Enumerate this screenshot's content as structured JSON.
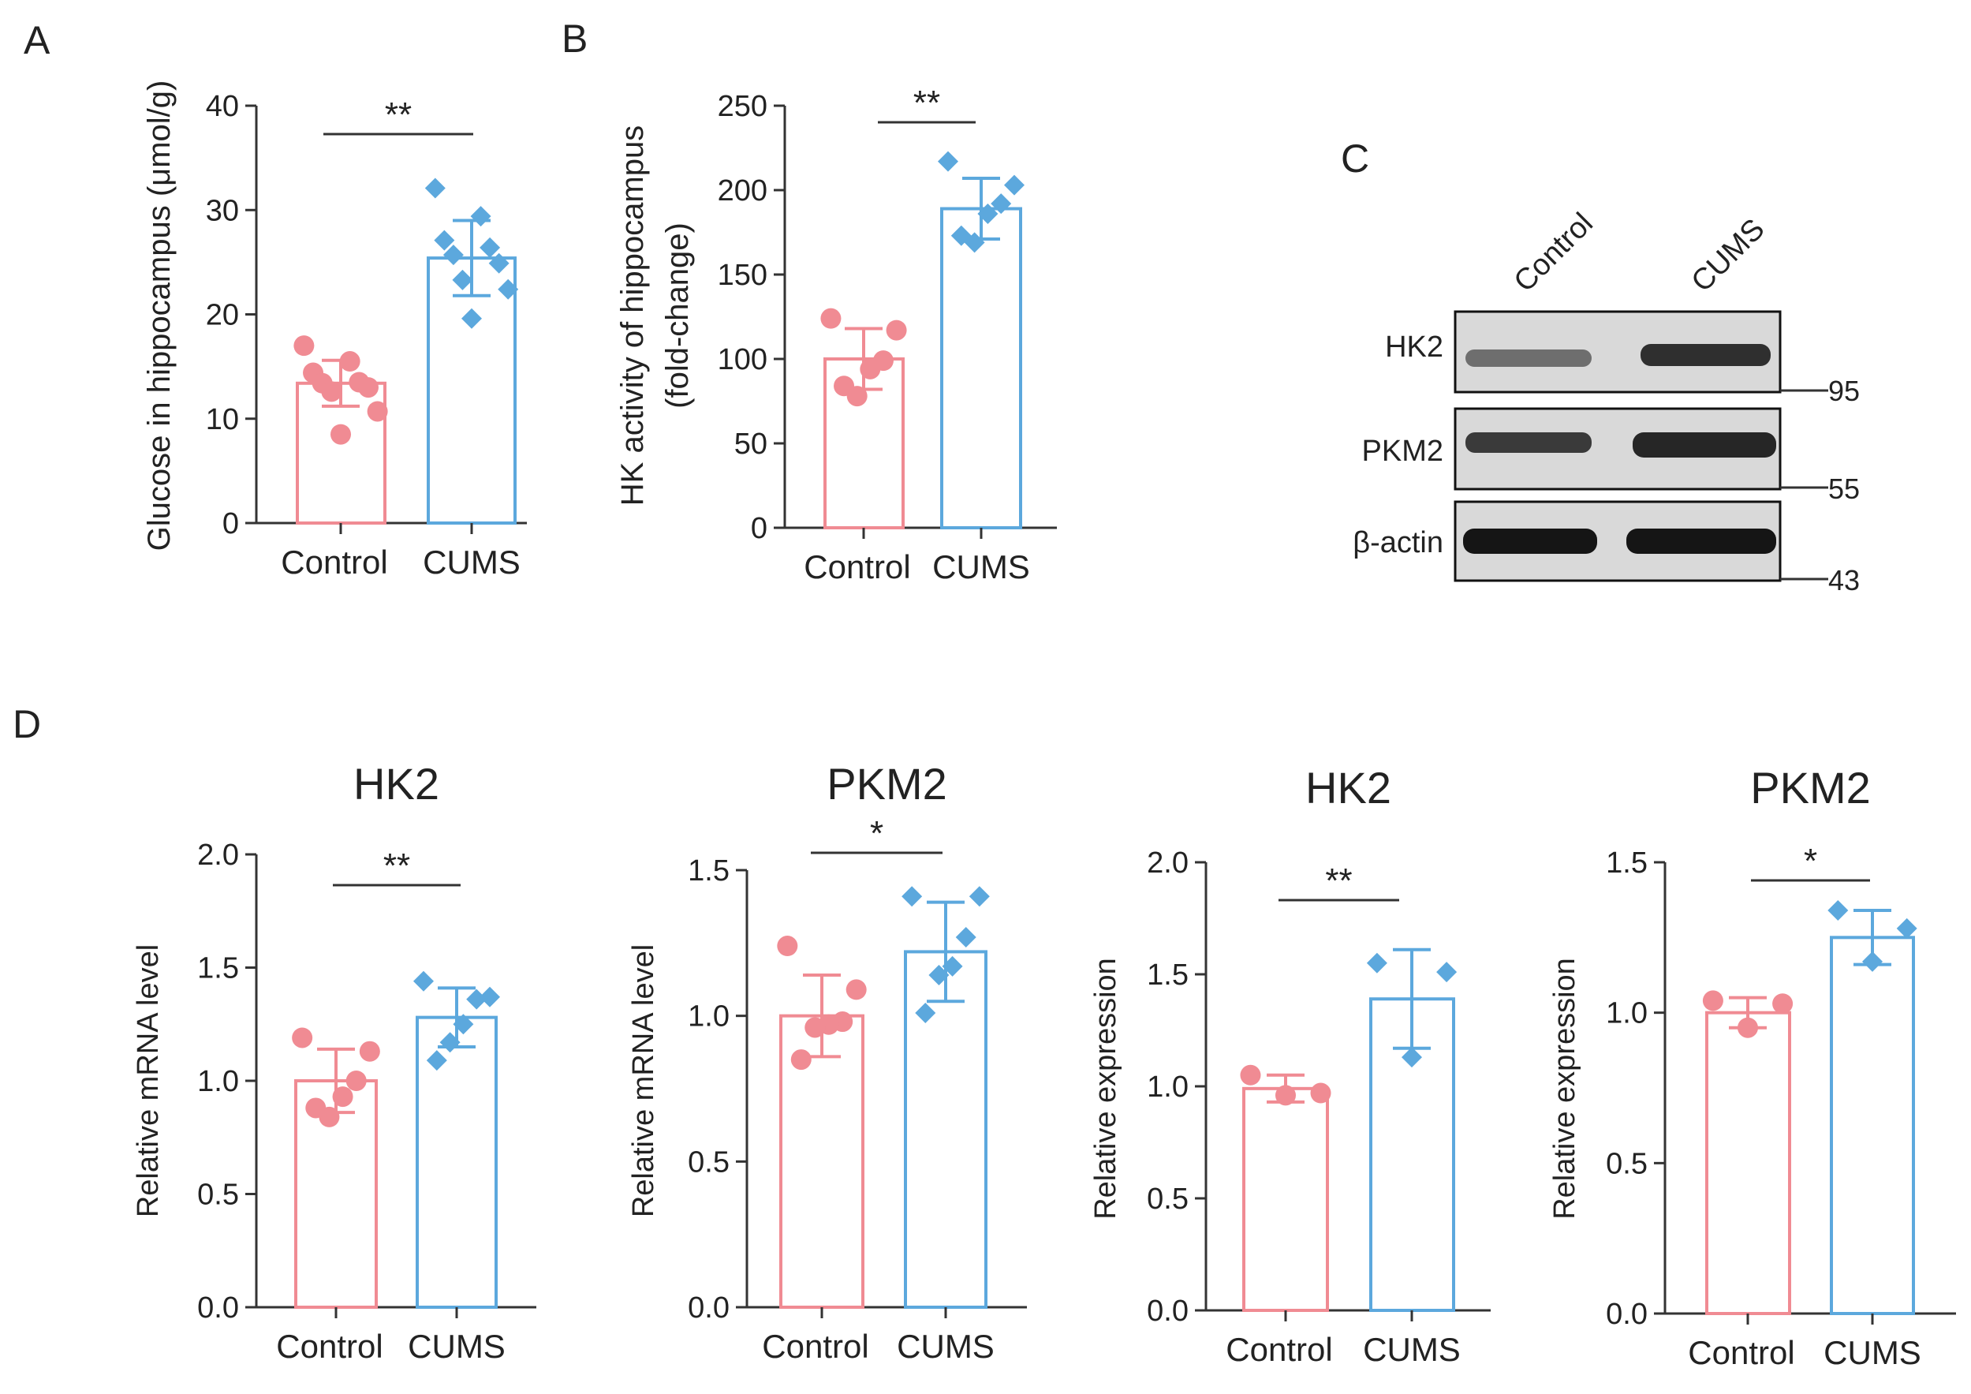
{
  "colors": {
    "control": "#f08b93",
    "cums": "#5ca8dd",
    "axis": "#333333",
    "text": "#222222"
  },
  "panel_labels": {
    "a": "A",
    "b": "B",
    "c": "C",
    "d": "D"
  },
  "panel_c": {
    "lanes": [
      "Control",
      "CUMS"
    ],
    "rows": [
      {
        "name": "HK2",
        "marker": "95"
      },
      {
        "name": "PKM2",
        "marker": "55"
      },
      {
        "name": "β-actin",
        "marker": "43"
      }
    ]
  },
  "chart_data": [
    {
      "id": "A",
      "type": "bar",
      "title": "",
      "ylabel": "Glucose in hippocampus (μmol/g)",
      "categories": [
        "Control",
        "CUMS"
      ],
      "ylim": [
        0,
        40
      ],
      "yticks": [
        "0",
        "10",
        "20",
        "30",
        "40"
      ],
      "values": [
        13.4,
        25.4
      ],
      "errors": [
        2.2,
        3.6
      ],
      "points": [
        [
          17,
          15.5,
          14.4,
          13.5,
          13.4,
          13.0,
          12.6,
          10.7,
          8.5
        ],
        [
          32.1,
          29.4,
          27.1,
          26.4,
          25.7,
          24.9,
          23.3,
          22.4,
          19.6
        ]
      ],
      "significance": "**"
    },
    {
      "id": "B",
      "type": "bar",
      "title": "",
      "ylabel": "HK activity of hippocampus",
      "ylabel2": "(fold-change)",
      "categories": [
        "Control",
        "CUMS"
      ],
      "ylim": [
        0,
        250
      ],
      "yticks": [
        "0",
        "50",
        "100",
        "150",
        "200",
        "250"
      ],
      "values": [
        100,
        189
      ],
      "errors": [
        18,
        18
      ],
      "points": [
        [
          124,
          117,
          99,
          94,
          78,
          84
        ],
        [
          217,
          203,
          192,
          186,
          169,
          173
        ]
      ],
      "significance": "**"
    },
    {
      "id": "D1",
      "type": "bar",
      "title": "HK2",
      "ylabel": "Relative mRNA level",
      "categories": [
        "Control",
        "CUMS"
      ],
      "ylim": [
        0,
        2.0
      ],
      "yticks": [
        "0.0",
        "0.5",
        "1.0",
        "1.5",
        "2.0"
      ],
      "values": [
        1.0,
        1.28
      ],
      "errors": [
        0.14,
        0.13
      ],
      "points": [
        [
          1.19,
          1.13,
          1.0,
          0.93,
          0.84,
          0.88
        ],
        [
          1.44,
          1.37,
          1.36,
          1.25,
          1.17,
          1.09
        ]
      ],
      "significance": "**"
    },
    {
      "id": "D2",
      "type": "bar",
      "title": "PKM2",
      "ylabel": "Relative mRNA level",
      "categories": [
        "Control",
        "CUMS"
      ],
      "ylim": [
        0,
        1.5
      ],
      "yticks": [
        "0.0",
        "0.5",
        "1.0",
        "1.5"
      ],
      "values": [
        1.0,
        1.22
      ],
      "errors": [
        0.14,
        0.17
      ],
      "points": [
        [
          1.24,
          1.09,
          0.98,
          0.97,
          0.96,
          0.85
        ],
        [
          1.41,
          1.41,
          1.27,
          1.17,
          1.14,
          1.01
        ]
      ],
      "significance": "*"
    },
    {
      "id": "D3",
      "type": "bar",
      "title": "HK2",
      "ylabel": "Relative expression",
      "categories": [
        "Control",
        "CUMS"
      ],
      "ylim": [
        0,
        2.0
      ],
      "yticks": [
        "0.0",
        "0.5",
        "1.0",
        "1.5",
        "2.0"
      ],
      "values": [
        0.99,
        1.39
      ],
      "errors": [
        0.06,
        0.22
      ],
      "points": [
        [
          1.05,
          0.97,
          0.96
        ],
        [
          1.55,
          1.51,
          1.13
        ]
      ],
      "significance": "**"
    },
    {
      "id": "D4",
      "type": "bar",
      "title": "PKM2",
      "ylabel": "Relative expression",
      "categories": [
        "Control",
        "CUMS"
      ],
      "ylim": [
        0,
        1.5
      ],
      "yticks": [
        "0.0",
        "0.5",
        "1.0",
        "1.5"
      ],
      "values": [
        1.0,
        1.25
      ],
      "errors": [
        0.05,
        0.09
      ],
      "points": [
        [
          1.04,
          1.03,
          0.95
        ],
        [
          1.34,
          1.28,
          1.17
        ]
      ],
      "significance": "*"
    }
  ]
}
